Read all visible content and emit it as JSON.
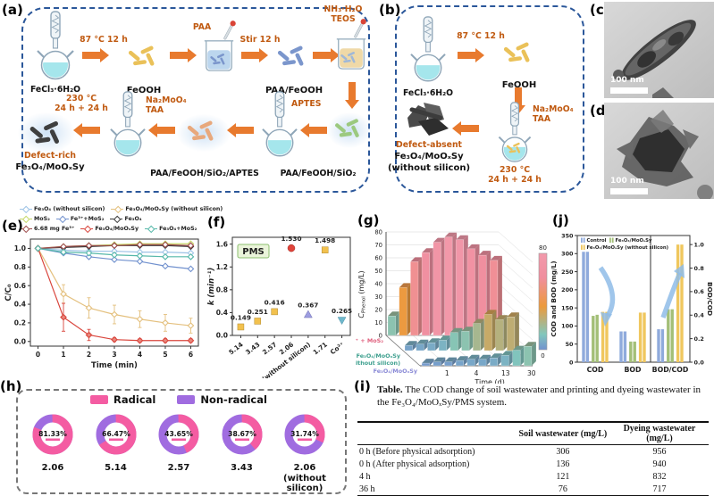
{
  "panels": {
    "a": {
      "label": "(a)"
    },
    "b": {
      "label": "(b)"
    },
    "c": {
      "label": "(c)",
      "scalebar": "100 nm"
    },
    "d": {
      "label": "(d)",
      "scalebar": "100 nm"
    },
    "e": {
      "label": "(e)"
    },
    "f": {
      "label": "(f)"
    },
    "g": {
      "label": "(g)"
    },
    "h": {
      "label": "(h)"
    },
    "i": {
      "label": "(i)"
    },
    "j": {
      "label": "(j)"
    }
  },
  "scheme_a": {
    "flask1_label": "FeCl₃·6H₂O",
    "cond1": "87 °C 12 h",
    "product1": "FeOOH",
    "dropper1": "PAA",
    "cond2": "Stir 12 h",
    "product2": "PAA/FeOOH",
    "reagent_top_line1": "NH₃·H₂O",
    "reagent_top_line2": "TEOS",
    "cond3_line1": "230 °C",
    "cond3_line2": "24 h + 24 h",
    "reagent_mid_line1": "Na₂MoO₄",
    "reagent_mid_line2": "TAA",
    "final_tag": "Defect-rich",
    "final_name": "Fe₃O₄/MoOₓSy",
    "intermediate2": "PAA/FeOOH/SiO₂/APTES",
    "reagent_right": "APTES",
    "intermediate1": "PAA/FeOOH/SiO₂"
  },
  "scheme_b": {
    "flask1_label": "FeCl₃·6H₂O",
    "cond1": "87 °C 12 h",
    "product1": "FeOOH",
    "reagent_line1": "Na₂MoO₄",
    "reagent_line2": "TAA",
    "cond2_line1": "230 °C",
    "cond2_line2": "24 h + 24 h",
    "final_tag": "Defect-absent",
    "final_name": "Fe₃O₄/MoOₓSy",
    "final_note": "(without silicon)"
  },
  "chart_data": [
    {
      "panel": "e",
      "type": "line",
      "xlabel": "Time (min)",
      "ylabel": "C/C₀",
      "x": [
        0,
        1,
        2,
        3,
        4,
        5,
        6
      ],
      "xlim": [
        -0.3,
        6.3
      ],
      "ylim": [
        -0.05,
        1.1
      ],
      "yticks": [
        0.0,
        0.2,
        0.4,
        0.6,
        0.8,
        1.0
      ],
      "series": [
        {
          "name": "Fe₃O₄ (without silicon)",
          "color": "#9DC3E6",
          "values": [
            1.0,
            0.98,
            0.97,
            0.97,
            0.96,
            0.96,
            0.95
          ]
        },
        {
          "name": "Fe₃O₄/MoOₓSy (without silicon)",
          "color": "#E4C07E",
          "values": [
            1.0,
            0.51,
            0.36,
            0.29,
            0.24,
            0.2,
            0.17
          ],
          "errors": [
            0,
            0.1,
            0.11,
            0.1,
            0.09,
            0.09,
            0.08
          ]
        },
        {
          "name": "MoS₂",
          "color": "#C7D96A",
          "values": [
            1.0,
            1.02,
            1.03,
            1.04,
            1.05,
            1.05,
            1.05
          ]
        },
        {
          "name": "Fe³⁺+MoS₂",
          "color": "#7191CE",
          "values": [
            1.0,
            0.95,
            0.91,
            0.88,
            0.86,
            0.81,
            0.78
          ]
        },
        {
          "name": "Fe₃O₄",
          "color": "#3B3B3B",
          "values": [
            1.0,
            1.01,
            1.02,
            1.03,
            1.03,
            1.03,
            1.02
          ]
        },
        {
          "name": "6.68 mg Fe³⁺",
          "color": "#9E4B4B",
          "values": [
            1.0,
            1.02,
            1.03,
            1.03,
            1.04,
            1.04,
            1.03
          ]
        },
        {
          "name": "Fe₃O₄/MoOₓSy",
          "color": "#D9453C",
          "values": [
            1.0,
            0.26,
            0.07,
            0.02,
            0.01,
            0.01,
            0.01
          ],
          "errors": [
            0,
            0.15,
            0.06,
            0.02,
            0.02,
            0.02,
            0.02
          ]
        },
        {
          "name": "Fe₃O₄+MoS₂",
          "color": "#56B8A9",
          "values": [
            1.0,
            0.96,
            0.95,
            0.93,
            0.92,
            0.91,
            0.91
          ]
        }
      ],
      "legend_rows": [
        [
          0,
          1
        ],
        [
          2,
          3,
          4
        ],
        [
          5,
          6,
          7
        ]
      ]
    },
    {
      "panel": "f",
      "type": "scatter",
      "badge": "PMS",
      "ylabel": "k (min⁻¹)",
      "yticks": [
        0.0,
        0.4,
        0.8,
        1.2,
        1.6
      ],
      "ylim": [
        0,
        1.72
      ],
      "categories": [
        "5.14",
        "3.43",
        "2.57",
        "2.06",
        "2.06 (without silicon)",
        "1.71",
        "Co²⁺"
      ],
      "values": [
        0.149,
        0.251,
        0.416,
        1.53,
        0.367,
        1.498,
        0.265
      ],
      "labels": [
        "0.149",
        "0.251",
        "0.416",
        "1.530",
        "0.367",
        "1.498",
        "0.265"
      ],
      "markers": [
        {
          "shape": "square",
          "color": "#F2C14E"
        },
        {
          "shape": "square",
          "color": "#F2C14E"
        },
        {
          "shape": "square",
          "color": "#F2C14E"
        },
        {
          "shape": "circle",
          "color": "#E0433A"
        },
        {
          "shape": "triangle-up",
          "color": "#9D9DE0"
        },
        {
          "shape": "square",
          "color": "#F2C14E"
        },
        {
          "shape": "triangle-down",
          "color": "#6FB8CC"
        }
      ]
    },
    {
      "panel": "g",
      "type": "bar3d",
      "zlabel_main": "C",
      "zlabel_sub": "Phenol",
      "zlabel_unit": " (mg/L)",
      "xlabel": "Time (d)",
      "xticks": [
        "1",
        "4",
        "13",
        "30"
      ],
      "zticks": [
        0,
        10,
        20,
        30,
        40,
        50,
        60,
        70,
        80
      ],
      "zlim": [
        0,
        80
      ],
      "colorbar": {
        "min": "0",
        "max": "80"
      },
      "series": [
        {
          "name": "Fe³⁺ + MoS₂",
          "label_color": "#E0607E",
          "values": [
            15,
            37,
            57,
            64,
            72,
            76,
            74,
            67,
            62,
            58
          ]
        },
        {
          "name": "Fe₃O₄/MoOₓSy",
          "name2": "(without silicon)",
          "label_color": "#3FA08F",
          "values": [
            4,
            5,
            6,
            8,
            14,
            15,
            21,
            28,
            24,
            26
          ]
        },
        {
          "name": "Fe₃O₄/MoOₓSy",
          "label_color": "#8A8AD6",
          "values": [
            2,
            3,
            3,
            4,
            5,
            5,
            6,
            8,
            12,
            15
          ]
        }
      ]
    },
    {
      "panel": "j",
      "type": "grouped-bar",
      "ylabel_left": "COD and BOD (mg/L)",
      "ylabel_right": "BOD/COD",
      "yticks_left": [
        0,
        50,
        100,
        150,
        200,
        250,
        300,
        350
      ],
      "ylim_left": [
        0,
        350
      ],
      "yticks_right": [
        0.0,
        0.2,
        0.4,
        0.6,
        0.8,
        1.0
      ],
      "ylim_right": [
        0,
        1.0
      ],
      "groups": [
        "COD",
        "BOD",
        "BOD/COD"
      ],
      "series": [
        {
          "name": "Control",
          "color": "#8FAADC",
          "values": [
            [
              305,
              305
            ],
            [
              85,
              85
            ],
            [
              0.28,
              0.28
            ]
          ]
        },
        {
          "name": "Fe₃O₄/MoOₓSy",
          "color": "#A3BF77",
          "values": [
            [
              128,
              131
            ],
            [
              57,
              57
            ],
            [
              0.45,
              0.45
            ]
          ]
        },
        {
          "name": "Fe₃O₄/MoOₓSy (without silicon)",
          "color": "#F0C75E",
          "values": [
            [
              139,
              139
            ],
            [
              137,
              137
            ],
            [
              1.0,
              1.0
            ]
          ]
        }
      ]
    },
    {
      "panel": "h",
      "type": "donut-set",
      "legend": [
        {
          "label": "Radical",
          "color": "#F45CA2"
        },
        {
          "label": "Non-radical",
          "color": "#A06CE0"
        }
      ],
      "donuts": [
        {
          "pct_label": "81.33%",
          "pct": 81.33,
          "label": "2.06"
        },
        {
          "pct_label": "66.47%",
          "pct": 66.47,
          "label": "5.14"
        },
        {
          "pct_label": "43.65%",
          "pct": 43.65,
          "label": "2.57"
        },
        {
          "pct_label": "38.67%",
          "pct": 38.67,
          "label": "3.43"
        },
        {
          "pct_label": "31.74%",
          "pct": 31.74,
          "label": "2.06",
          "label2": "(without silicon)"
        }
      ]
    }
  ],
  "table_i": {
    "caption_bold": "Table.",
    "caption_rest": " The COD change of soil wastewater and printing and dyeing wastewater in the Fe₃O₄/MoOₓSy/PMS system.",
    "columns": [
      "",
      "Soil wastewater (mg/L)",
      "Dyeing wastewater (mg/L)"
    ],
    "rows": [
      [
        "0 h (Before physical adsorption)",
        "306",
        "956"
      ],
      [
        "0 h (After physical adsorption)",
        "136",
        "940"
      ],
      [
        "4 h",
        "121",
        "832"
      ],
      [
        "36 h",
        "76",
        "717"
      ]
    ]
  }
}
